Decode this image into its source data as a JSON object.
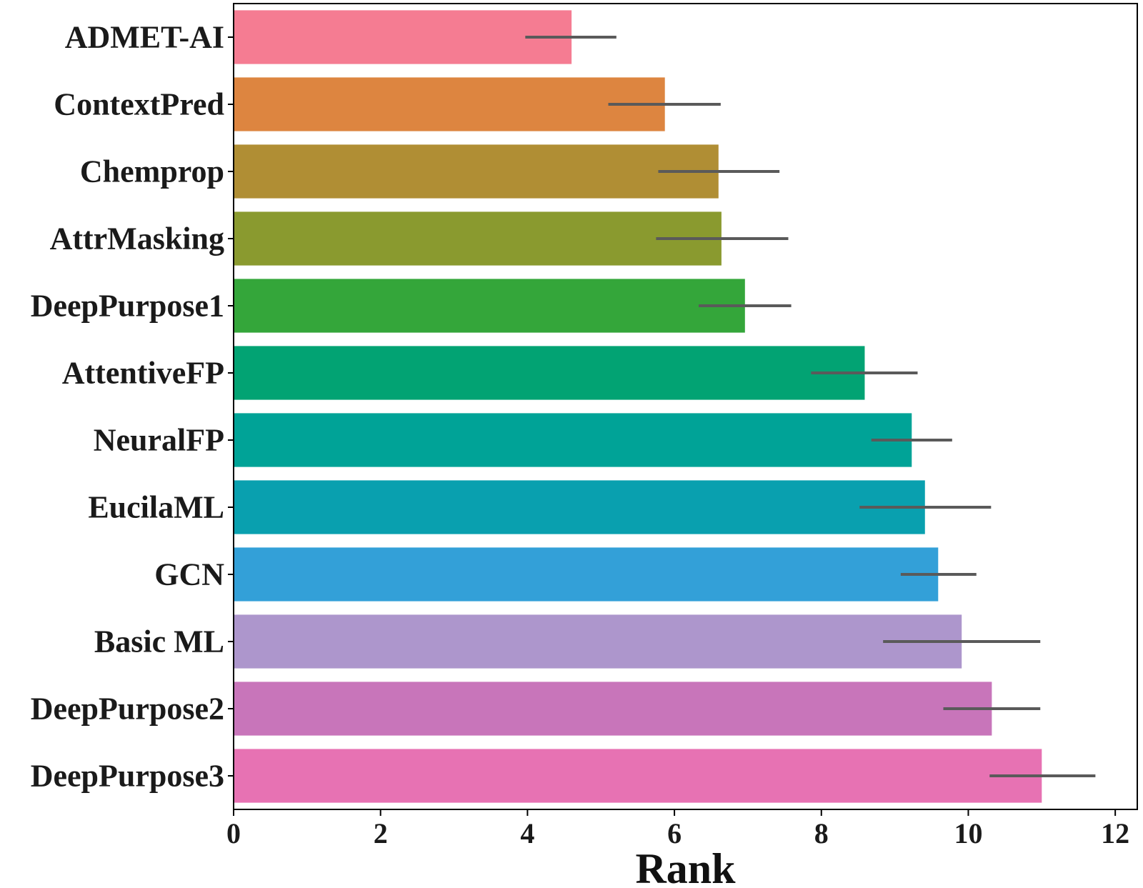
{
  "chart_data": {
    "type": "bar",
    "orientation": "horizontal",
    "title": "",
    "xlabel": "Rank",
    "ylabel": "",
    "xlim": [
      0,
      12.3
    ],
    "xticks": [
      0,
      2,
      4,
      6,
      8,
      10,
      12
    ],
    "grid": false,
    "legend": "none",
    "categories": [
      "ADMET-AI",
      "ContextPred",
      "Chemprop",
      "AttrMasking",
      "DeepPurpose1",
      "AttentiveFP",
      "NeuralFP",
      "EucilaML",
      "GCN",
      "Basic ML",
      "DeepPurpose2",
      "DeepPurpose3"
    ],
    "values": [
      4.6,
      5.87,
      6.6,
      6.64,
      6.96,
      8.59,
      9.23,
      9.41,
      9.59,
      9.91,
      10.32,
      11.0
    ],
    "error_low": [
      3.97,
      5.1,
      5.78,
      5.75,
      6.33,
      7.86,
      8.68,
      8.52,
      9.08,
      8.84,
      9.66,
      10.29
    ],
    "error_high": [
      5.21,
      6.63,
      7.43,
      7.55,
      7.59,
      9.31,
      9.78,
      10.31,
      10.11,
      10.98,
      10.98,
      11.73
    ],
    "colors": [
      "#f57c92",
      "#dd8540",
      "#b08e34",
      "#8a9a2f",
      "#34a63a",
      "#02a373",
      "#00a397",
      "#09a0af",
      "#33a0d8",
      "#ad96cc",
      "#c875ba",
      "#e772b3"
    ],
    "error_color": "#5a5a5a"
  }
}
